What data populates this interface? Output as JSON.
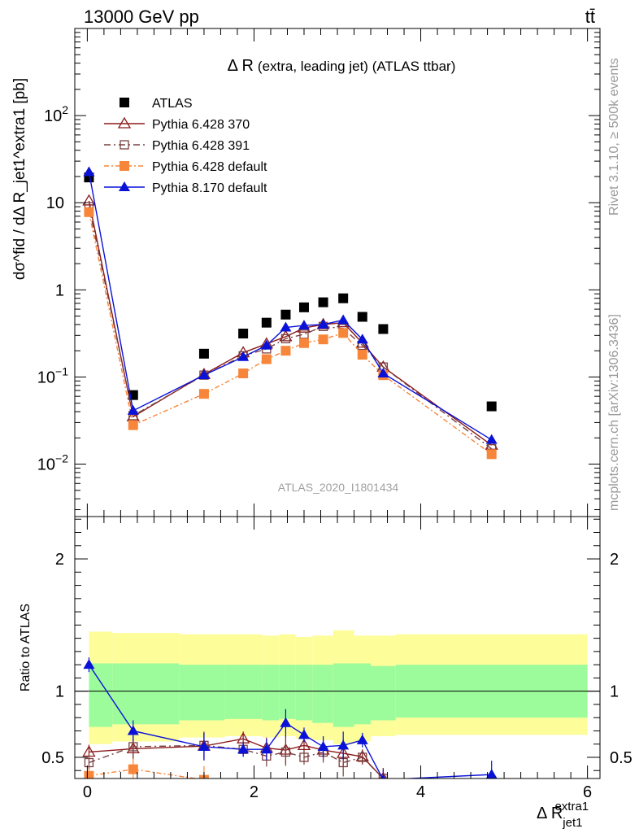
{
  "header": {
    "energy_label": "13000 GeV pp",
    "process_label": "tt̄"
  },
  "side_labels": {
    "rivet": "Rivet 3.1.10, ≥ 500k events",
    "mcplots": "mcplots.cern.ch [arXiv:1306.3436]"
  },
  "colors": {
    "atlas": "#000000",
    "p6_370": "#8b1a1a",
    "p6_391": "#7a4040",
    "p6_default": "#f7863a",
    "p8_default": "#0a12d8",
    "band_inner": "#9cfc9c",
    "band_outer": "#fdfd9a"
  },
  "chart_data": [
    {
      "type": "scatter",
      "title_main": "Δ R",
      "title_rest": "(extra, leading jet) (ATLAS ttbar)",
      "ylabel": "dσ^fid / dΔ R_jet1^extra1 [pb]",
      "yscale": "log",
      "ylim": [
        0.0025,
        1000
      ],
      "xlim": [
        -0.15,
        6.15
      ],
      "analysis_tag": "ATLAS_2020_I1801434",
      "y_ticks": [
        {
          "value": 0.01,
          "base": "10",
          "exp": "−2"
        },
        {
          "value": 0.1,
          "base": "10",
          "exp": "−1"
        },
        {
          "value": 1,
          "base": "1",
          "exp": ""
        },
        {
          "value": 10,
          "base": "10",
          "exp": ""
        },
        {
          "value": 100,
          "base": "10",
          "exp": "2"
        }
      ],
      "x": [
        0.02,
        0.55,
        1.4,
        1.87,
        2.15,
        2.38,
        2.6,
        2.83,
        3.07,
        3.3,
        3.55,
        4.85
      ],
      "series": [
        {
          "name": "ATLAS",
          "marker": "square-filled",
          "values": [
            19.5,
            0.062,
            0.185,
            0.315,
            0.42,
            0.52,
            0.63,
            0.72,
            0.8,
            0.49,
            0.355,
            0.046
          ]
        },
        {
          "name": "Pythia 6.428 370",
          "marker": "triangle-open",
          "values": [
            10.5,
            0.035,
            0.107,
            0.19,
            0.24,
            0.29,
            0.365,
            0.4,
            0.42,
            0.245,
            0.13,
            0.0165
          ]
        },
        {
          "name": "Pythia 6.428 391",
          "marker": "square-open",
          "values": [
            9.0,
            0.036,
            0.105,
            0.175,
            0.21,
            0.275,
            0.31,
            0.38,
            0.36,
            0.23,
            0.13,
            0.015
          ]
        },
        {
          "name": "Pythia 6.428 default",
          "marker": "square-filled",
          "values": [
            7.8,
            0.028,
            0.064,
            0.11,
            0.16,
            0.2,
            0.245,
            0.27,
            0.32,
            0.18,
            0.105,
            0.013
          ]
        },
        {
          "name": "Pythia 8.170 default",
          "marker": "triangle-filled",
          "values": [
            22.5,
            0.041,
            0.105,
            0.17,
            0.23,
            0.37,
            0.39,
            0.4,
            0.45,
            0.27,
            0.11,
            0.019
          ]
        }
      ]
    },
    {
      "type": "line",
      "ylabel": "Ratio to ATLAS",
      "xlabel_main": "Δ R",
      "xlabel_sub": "jet1",
      "xlabel_sup": "extra1",
      "ylim": [
        0.34,
        2.32
      ],
      "x_ticks": [
        0,
        2,
        4,
        6
      ],
      "y_ticks": [
        0.5,
        1,
        2
      ],
      "band_edges": [
        0.02,
        0.3,
        1.1,
        1.65,
        2.1,
        2.3,
        2.5,
        2.7,
        2.95,
        3.2,
        3.4,
        3.7,
        6.0
      ],
      "band_inner_low": [
        0.73,
        0.75,
        0.78,
        0.79,
        0.78,
        0.79,
        0.78,
        0.76,
        0.73,
        0.75,
        0.78,
        0.8
      ],
      "band_inner_high": [
        1.21,
        1.21,
        1.2,
        1.2,
        1.2,
        1.2,
        1.2,
        1.2,
        1.21,
        1.21,
        1.19,
        1.2
      ],
      "band_outer_low": [
        0.6,
        0.62,
        0.65,
        0.66,
        0.65,
        0.66,
        0.64,
        0.63,
        0.6,
        0.62,
        0.66,
        0.67
      ],
      "band_outer_high": [
        1.45,
        1.44,
        1.43,
        1.43,
        1.42,
        1.43,
        1.41,
        1.42,
        1.46,
        1.42,
        1.42,
        1.43
      ],
      "series": [
        {
          "name": "Pythia 6.428 370",
          "marker": "triangle-open",
          "values": [
            0.54,
            0.565,
            0.585,
            0.64,
            0.57,
            0.555,
            0.59,
            0.555,
            0.53,
            0.505,
            0.34,
            null
          ]
        },
        {
          "name": "Pythia 6.428 391",
          "marker": "square-open",
          "values": [
            0.46,
            0.58,
            0.59,
            0.56,
            0.51,
            0.54,
            0.5,
            0.54,
            0.46,
            0.5,
            0.34,
            null
          ]
        },
        {
          "name": "Pythia 6.428 default",
          "marker": "square-filled",
          "values": [
            0.36,
            0.41,
            0.33,
            null,
            null,
            null,
            null,
            null,
            null,
            null,
            null,
            null
          ]
        },
        {
          "name": "Pythia 8.170 default",
          "marker": "triangle-filled",
          "values": [
            1.2,
            0.7,
            0.58,
            0.56,
            0.56,
            0.76,
            0.67,
            0.58,
            0.59,
            0.63,
            0.33,
            0.37
          ]
        }
      ]
    }
  ]
}
